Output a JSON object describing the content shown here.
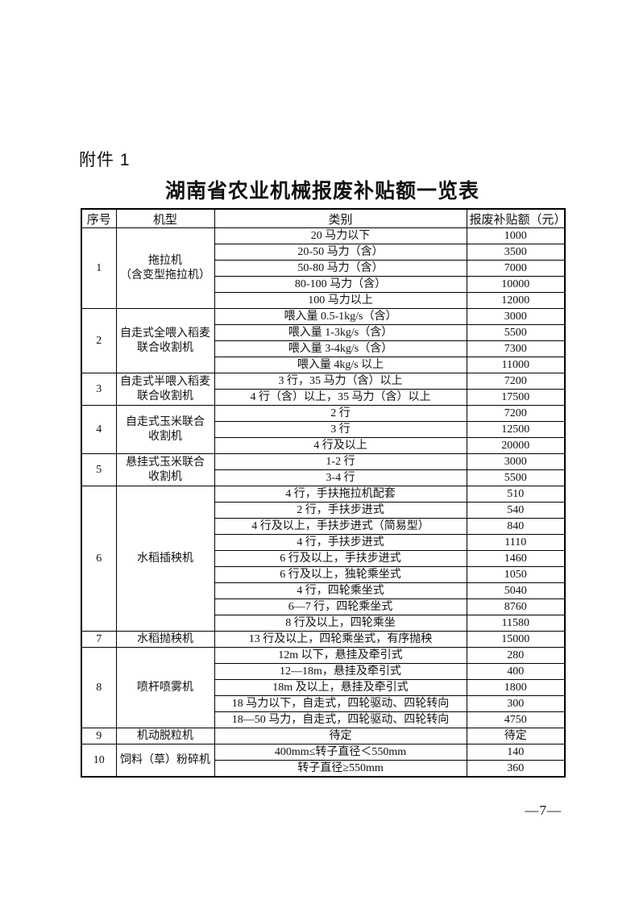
{
  "page": {
    "attachment_label": "附件 1",
    "title": "湖南省农业机械报废补贴额一览表",
    "page_number": "—7—"
  },
  "colors": {
    "text": "#111111",
    "border": "#000000",
    "background": "#ffffff"
  },
  "table": {
    "headers": [
      "序号",
      "机型",
      "类别",
      "报废补贴额（元）"
    ],
    "groups": [
      {
        "no": "1",
        "machine": "拖拉机\n（含变型拖拉机）",
        "rows": [
          {
            "category": "20 马力以下",
            "amount": "1000"
          },
          {
            "category": "20-50 马力（含）",
            "amount": "3500"
          },
          {
            "category": "50-80 马力（含）",
            "amount": "7000"
          },
          {
            "category": "80-100 马力（含）",
            "amount": "10000"
          },
          {
            "category": "100 马力以上",
            "amount": "12000"
          }
        ]
      },
      {
        "no": "2",
        "machine": "自走式全喂入稻麦\n联合收割机",
        "rows": [
          {
            "category": "喂入量 0.5-1kg/s（含）",
            "amount": "3000"
          },
          {
            "category": "喂入量 1-3kg/s（含）",
            "amount": "5500"
          },
          {
            "category": "喂入量 3-4kg/s（含）",
            "amount": "7300"
          },
          {
            "category": "喂入量 4kg/s 以上",
            "amount": "11000"
          }
        ]
      },
      {
        "no": "3",
        "machine": "自走式半喂入稻麦\n联合收割机",
        "rows": [
          {
            "category": "3 行，35 马力（含）以上",
            "amount": "7200"
          },
          {
            "category": "4 行（含）以上，35 马力（含）以上",
            "amount": "17500"
          }
        ]
      },
      {
        "no": "4",
        "machine": "自走式玉米联合\n收割机",
        "rows": [
          {
            "category": "2 行",
            "amount": "7200"
          },
          {
            "category": "3 行",
            "amount": "12500"
          },
          {
            "category": "4 行及以上",
            "amount": "20000"
          }
        ]
      },
      {
        "no": "5",
        "machine": "悬挂式玉米联合\n收割机",
        "rows": [
          {
            "category": "1-2 行",
            "amount": "3000"
          },
          {
            "category": "3-4 行",
            "amount": "5500"
          }
        ]
      },
      {
        "no": "6",
        "machine": "水稻插秧机",
        "rows": [
          {
            "category": "4 行，手扶拖拉机配套",
            "amount": "510"
          },
          {
            "category": "2 行，手扶步进式",
            "amount": "540"
          },
          {
            "category": "4 行及以上，手扶步进式（简易型）",
            "amount": "840"
          },
          {
            "category": "4 行，手扶步进式",
            "amount": "1110"
          },
          {
            "category": "6 行及以上，手扶步进式",
            "amount": "1460"
          },
          {
            "category": "6 行及以上，独轮乘坐式",
            "amount": "1050"
          },
          {
            "category": "4 行，四轮乘坐式",
            "amount": "5040"
          },
          {
            "category": "6—7 行，四轮乘坐式",
            "amount": "8760"
          },
          {
            "category": "8 行及以上，四轮乘坐",
            "amount": "11580"
          }
        ]
      },
      {
        "no": "7",
        "machine": "水稻抛秧机",
        "rows": [
          {
            "category": "13 行及以上，四轮乘坐式，有序抛秧",
            "amount": "15000"
          }
        ]
      },
      {
        "no": "8",
        "machine": "喷杆喷雾机",
        "rows": [
          {
            "category": "12m 以下，悬挂及牵引式",
            "amount": "280"
          },
          {
            "category": "12—18m，悬挂及牵引式",
            "amount": "400"
          },
          {
            "category": "18m 及以上，悬挂及牵引式",
            "amount": "1800"
          },
          {
            "category": "18 马力以下，自走式，四轮驱动、四轮转向",
            "amount": "300"
          },
          {
            "category": "18—50 马力，自走式，四轮驱动、四轮转向",
            "amount": "4750"
          }
        ]
      },
      {
        "no": "9",
        "machine": "机动脱粒机",
        "rows": [
          {
            "category": "待定",
            "amount": "待定"
          }
        ]
      },
      {
        "no": "10",
        "machine": "饲料（草）粉碎机",
        "rows": [
          {
            "category": "400mm≤转子直径＜550mm",
            "amount": "140"
          },
          {
            "category": "转子直径≥550mm",
            "amount": "360"
          }
        ]
      }
    ]
  }
}
